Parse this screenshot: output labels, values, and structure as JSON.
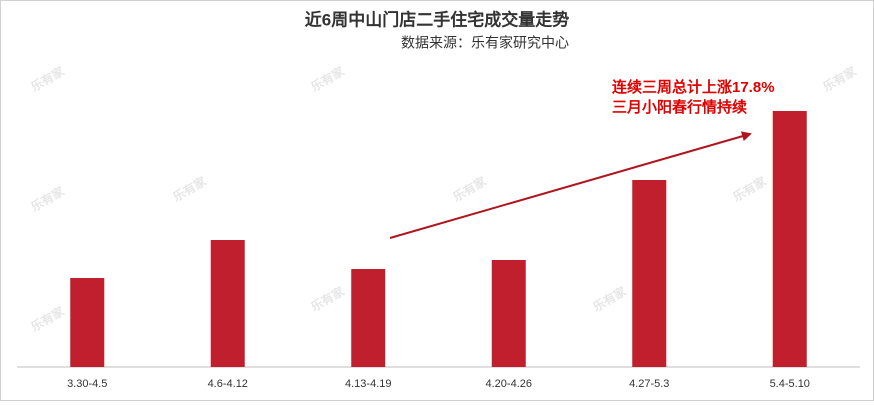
{
  "chart_data": {
    "type": "bar",
    "title": "近6周中山门店二手住宅成交量走势",
    "subtitle": "数据来源：乐有家研究中心",
    "annotations": [
      "连续三周总计上涨17.8%",
      "三月小阳春行情持续"
    ],
    "watermark": "乐有家",
    "categories": [
      "3.30-4.5",
      "4.6-4.12",
      "4.13-4.19",
      "4.20-4.26",
      "4.27-5.3",
      "5.4-5.10"
    ],
    "values": [
      89,
      127,
      98,
      107,
      187,
      256
    ],
    "color": "#c0202e",
    "ylim": [
      0,
      280
    ]
  }
}
